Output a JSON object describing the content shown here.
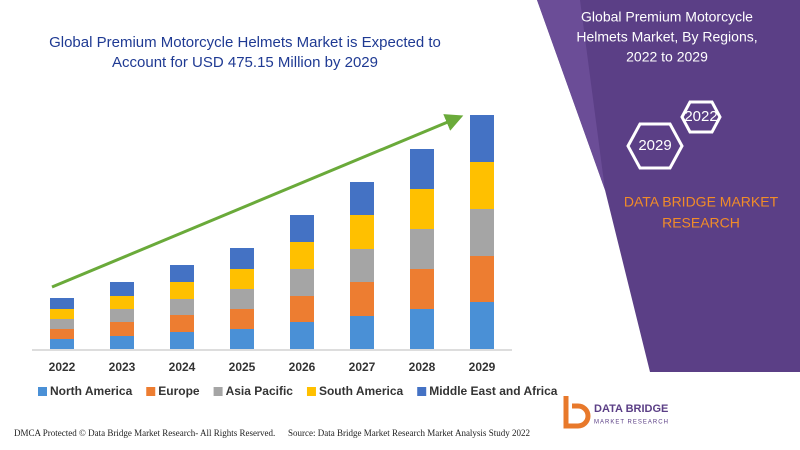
{
  "chart_data": {
    "type": "stacked_bar",
    "title_lines": [
      "Global Premium Motorcycle Helmets Market is Expected to",
      "Account for USD 475.15 Million by 2029"
    ],
    "categories": [
      "2022",
      "2023",
      "2024",
      "2025",
      "2026",
      "2027",
      "2028",
      "2029"
    ],
    "series": [
      {
        "name": "North America",
        "color": "#4a90d6",
        "values": [
          10,
          13,
          17,
          20,
          27,
          33,
          40,
          47
        ]
      },
      {
        "name": "Europe",
        "color": "#ed7d31",
        "values": [
          10,
          14,
          17,
          20,
          26,
          34,
          40,
          46
        ]
      },
      {
        "name": "Asia Pacific",
        "color": "#a5a5a5",
        "values": [
          10,
          13,
          16,
          20,
          27,
          33,
          40,
          47
        ]
      },
      {
        "name": "South America",
        "color": "#ffc000",
        "values": [
          10,
          13,
          17,
          20,
          27,
          34,
          40,
          47
        ]
      },
      {
        "name": "Middle East and Africa",
        "color": "#4472c4",
        "values": [
          11,
          14,
          17,
          21,
          27,
          33,
          40,
          47
        ]
      }
    ],
    "ylim": [
      0,
      240
    ],
    "legend": "bottom",
    "trend_arrow_color": "#6aaa3a"
  },
  "panel": {
    "title_lines": [
      "Global Premium Motorcycle",
      "Helmets Market, By Regions,",
      "2022 to 2029"
    ],
    "hex_labels": [
      "2022",
      "2029"
    ],
    "brand_lines": [
      "DATA BRIDGE MARKET",
      "RESEARCH"
    ]
  },
  "logo": {
    "name": "DATA BRIDGE",
    "tagline": "MARKET RESEARCH"
  },
  "footer": {
    "left": "DMCA Protected © Data Bridge Market Research- All Rights Reserved.",
    "right": "Source: Data Bridge Market Research Market Analysis Study 2022"
  }
}
